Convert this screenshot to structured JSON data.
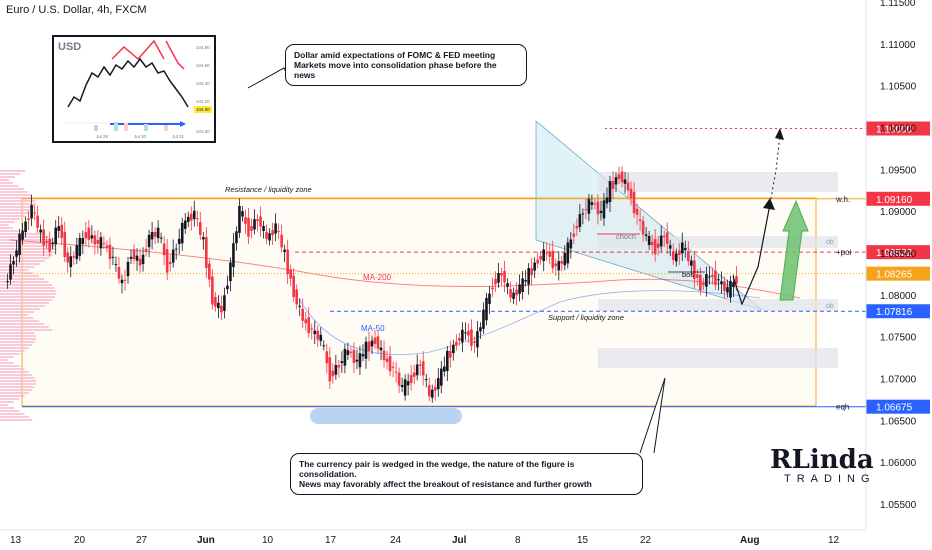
{
  "header": {
    "title": "Euro / U.S. Dollar, 4h, FXCM"
  },
  "callouts": {
    "top": [
      "Dollar amid expectations of FOMC & FED meeting",
      "Markets move into consolidation phase before the news"
    ],
    "bottom": [
      "The currency pair is wedged in the wedge, the nature of the figure is consolidation.",
      "News may favorably affect the breakout of resistance and further growth"
    ]
  },
  "inset": {
    "label": "USD",
    "price_ticks": [
      "104.80",
      "104.60",
      "104.40",
      "104.20",
      "104.00",
      "103.80"
    ],
    "highlight_price": "104.00",
    "date_ticks": [
      "Jul 29",
      "Jul 30",
      "Jul 31"
    ]
  },
  "logo": {
    "line1": "RLinda",
    "line2": "TRADING"
  },
  "colors": {
    "bull": "#131722",
    "bear": "#f23645",
    "accent_blue": "#2962ff",
    "orange": "#f5a623",
    "green_arrow": "#4caf50",
    "red_badge": "#f23645",
    "blue_badge": "#2962ff",
    "orange_badge": "#f7a21b"
  },
  "chart_data": {
    "type": "candlestick",
    "title": "Euro / U.S. Dollar, 4h, FXCM",
    "y_axis": {
      "ticks": [
        "1.11500",
        "1.11000",
        "1.10500",
        "1.10000",
        "1.09500",
        "1.09000",
        "1.08500",
        "1.08000",
        "1.07500",
        "1.07000",
        "1.06500",
        "1.06000",
        "1.05500"
      ],
      "range": [
        1.0525,
        1.1165
      ]
    },
    "x_axis": {
      "ticks": [
        "13",
        "20",
        "27",
        "Jun",
        "10",
        "17",
        "24",
        "Jul",
        "8",
        "15",
        "22",
        "Aug",
        "12"
      ]
    },
    "price_levels": [
      {
        "label": "1.10000",
        "value": 1.1,
        "style": "dotted-red",
        "tag": ""
      },
      {
        "label": "1.09160",
        "value": 1.0916,
        "style": "orange",
        "tag": "w.h."
      },
      {
        "label": "1.08522",
        "value": 1.08522,
        "style": "dashed-red",
        "tag": "+poi"
      },
      {
        "label": "1.08265",
        "value": 1.08265,
        "style": "dotted-orange",
        "tag": ""
      },
      {
        "label": "1.07816",
        "value": 1.07816,
        "style": "dashed-blue",
        "tag": ""
      },
      {
        "label": "1.06675",
        "value": 1.06675,
        "style": "solid-blue",
        "tag": "eqh"
      }
    ],
    "annotations": [
      "Resistance / liquidity zone",
      "Support / liquidity zone",
      "MA-200",
      "MA-50",
      "choch",
      "bos",
      "ob",
      "ob"
    ],
    "price_path": [
      1.0812,
      1.0845,
      1.0878,
      1.0905,
      1.0872,
      1.0858,
      1.0885,
      1.0838,
      1.0855,
      1.0876,
      1.0865,
      1.0862,
      1.0843,
      1.0812,
      1.0852,
      1.0838,
      1.0871,
      1.0876,
      1.0835,
      1.086,
      1.089,
      1.0898,
      1.0863,
      1.0795,
      1.0782,
      1.0838,
      1.0902,
      1.0878,
      1.0893,
      1.0868,
      1.0883,
      1.0848,
      1.0804,
      1.0772,
      1.0758,
      1.0748,
      1.0705,
      1.0718,
      1.0735,
      1.072,
      1.0738,
      1.0748,
      1.0725,
      1.0713,
      1.0688,
      1.0703,
      1.072,
      1.068,
      1.0698,
      1.0727,
      1.0746,
      1.0758,
      1.0742,
      1.0778,
      1.0815,
      1.0828,
      1.0798,
      1.081,
      1.0826,
      1.0844,
      1.0853,
      1.0834,
      1.0846,
      1.0878,
      1.0902,
      1.0912,
      1.0898,
      1.093,
      1.0945,
      1.0928,
      1.0895,
      1.0868,
      1.0857,
      1.0874,
      1.0843,
      1.086,
      1.0835,
      1.0812,
      1.0825,
      1.0818,
      1.0805,
      1.0822
    ]
  }
}
